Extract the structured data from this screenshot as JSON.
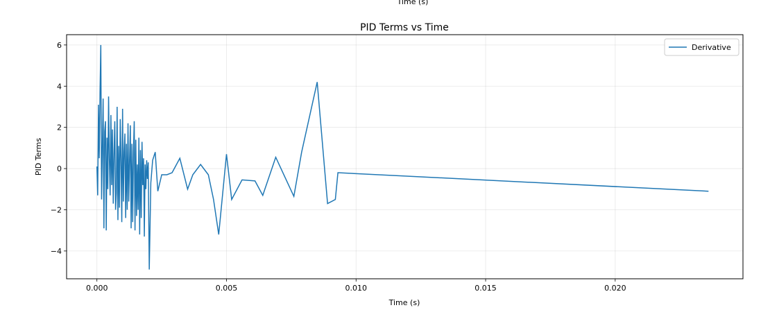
{
  "top_cutoff_label": "Time (s)",
  "chart_data": {
    "type": "line",
    "title": "PID Terms vs Time",
    "xlabel": "Time (s)",
    "ylabel": "PID Terms",
    "xlim": [
      -0.00117,
      0.02493
    ],
    "ylim": [
      -5.35,
      6.5
    ],
    "x_ticks": [
      0.0,
      0.005,
      0.01,
      0.015,
      0.02
    ],
    "x_tick_labels": [
      "0.000",
      "0.005",
      "0.010",
      "0.015",
      "0.020"
    ],
    "y_ticks": [
      -4,
      -2,
      0,
      2,
      4,
      6
    ],
    "y_tick_labels": [
      "−4",
      "−2",
      "0",
      "2",
      "4",
      "6"
    ],
    "grid": true,
    "legend_position": "top-right",
    "series": [
      {
        "name": "Derivative",
        "color": "#1f77b4",
        "x": [
          0.0,
          3e-05,
          6e-05,
          9e-05,
          0.00012,
          0.00015,
          0.00018,
          0.00021,
          0.00024,
          0.00027,
          0.0003,
          0.00033,
          0.00036,
          0.00039,
          0.00042,
          0.00045,
          0.00048,
          0.00051,
          0.00054,
          0.00057,
          0.0006,
          0.00063,
          0.00066,
          0.00069,
          0.00072,
          0.00075,
          0.00078,
          0.00081,
          0.00084,
          0.00087,
          0.0009,
          0.00093,
          0.00096,
          0.00099,
          0.00102,
          0.00105,
          0.00108,
          0.00111,
          0.00114,
          0.00117,
          0.0012,
          0.00123,
          0.00126,
          0.00129,
          0.00132,
          0.00135,
          0.00138,
          0.00141,
          0.00144,
          0.00147,
          0.0015,
          0.00153,
          0.00156,
          0.00159,
          0.00162,
          0.00165,
          0.00168,
          0.00171,
          0.00174,
          0.00177,
          0.0018,
          0.00183,
          0.00186,
          0.00189,
          0.00192,
          0.00195,
          0.00198,
          0.00202,
          0.00208,
          0.00215,
          0.00225,
          0.00235,
          0.0025,
          0.0027,
          0.0029,
          0.0032,
          0.0035,
          0.0037,
          0.004,
          0.0043,
          0.0045,
          0.0047,
          0.005,
          0.0052,
          0.0056,
          0.0061,
          0.0064,
          0.0069,
          0.0076,
          0.0079,
          0.0085,
          0.0089,
          0.0092,
          0.0093,
          0.0236
        ],
        "y": [
          0.1,
          -1.3,
          3.1,
          0.5,
          3.7,
          6.0,
          -1.5,
          1.0,
          3.4,
          -2.9,
          1.8,
          2.3,
          -3.0,
          1.5,
          -1.0,
          3.5,
          0.5,
          -1.3,
          2.6,
          -0.8,
          1.9,
          -1.7,
          0.7,
          2.3,
          -2.0,
          -1.2,
          3.0,
          -2.5,
          1.1,
          -1.9,
          2.4,
          0.5,
          -2.6,
          2.9,
          -1.6,
          0.8,
          1.7,
          -2.4,
          1.2,
          -2.0,
          2.2,
          -1.6,
          0.4,
          2.1,
          -2.9,
          1.2,
          -2.6,
          0.8,
          2.3,
          -3.0,
          1.4,
          -2.3,
          0.2,
          -2.0,
          1.5,
          -3.2,
          0.9,
          -2.4,
          1.3,
          -0.8,
          0.5,
          -3.3,
          0.2,
          -1.0,
          0.4,
          -0.5,
          0.3,
          -4.9,
          -0.7,
          0.4,
          0.8,
          -1.1,
          -0.3,
          -0.3,
          -0.2,
          0.5,
          -1.0,
          -0.3,
          0.2,
          -0.3,
          -1.5,
          -3.2,
          0.7,
          -1.5,
          -0.55,
          -0.6,
          -1.3,
          0.55,
          -1.35,
          0.8,
          4.2,
          -1.7,
          -1.5,
          -0.2,
          -1.1
        ]
      }
    ]
  }
}
